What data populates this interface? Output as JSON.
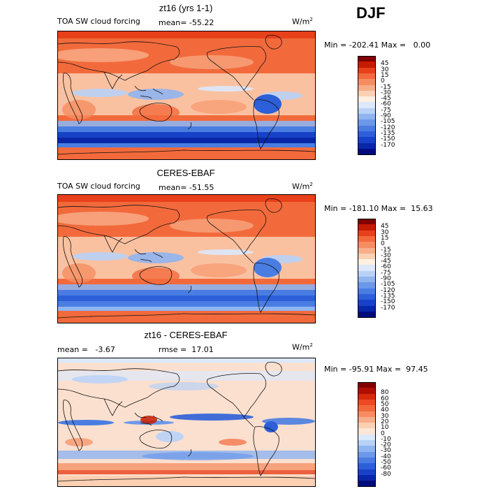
{
  "season": "DJF",
  "panels": [
    {
      "title": "zt16 (yrs 1-1)",
      "left_text": "TOA SW cloud forcing",
      "mid_text": "mean= -55.22",
      "unit": "W/m",
      "unit_exp": "2",
      "range_text": "Min = -202.41 Max =   0.00",
      "colorbar": {
        "colors": [
          "#800000",
          "#c51b00",
          "#e8401a",
          "#f26a3c",
          "#f58d60",
          "#f8ae88",
          "#fbd0b3",
          "#fff0e0",
          "#dce8fb",
          "#b8d1f7",
          "#8fb4f0",
          "#6b98ea",
          "#4a7de2",
          "#2c5fd8",
          "#1742c8",
          "#0827a8",
          "#000c7e"
        ],
        "labels": [
          "45",
          "30",
          "15",
          "0",
          "-15",
          "-30",
          "-45",
          "-60",
          "-75",
          "-90",
          "-105",
          "-120",
          "-135",
          "-150",
          "-170"
        ]
      },
      "map_style": "bias_negative"
    },
    {
      "title": "CERES-EBAF",
      "left_text": "TOA SW cloud forcing",
      "mid_text": "mean= -51.55",
      "unit": "W/m",
      "unit_exp": "2",
      "range_text": "Min = -181.10 Max =  15.63",
      "colorbar": {
        "colors": [
          "#800000",
          "#c51b00",
          "#e8401a",
          "#f26a3c",
          "#f58d60",
          "#f8ae88",
          "#fbd0b3",
          "#fff0e0",
          "#dce8fb",
          "#b8d1f7",
          "#8fb4f0",
          "#6b98ea",
          "#4a7de2",
          "#2c5fd8",
          "#1742c8",
          "#0827a8",
          "#000c7e"
        ],
        "labels": [
          "45",
          "30",
          "15",
          "0",
          "-15",
          "-30",
          "-45",
          "-60",
          "-75",
          "-90",
          "-105",
          "-120",
          "-135",
          "-150",
          "-170"
        ]
      },
      "map_style": "obs"
    },
    {
      "title": "zt16 - CERES-EBAF",
      "left_text": "mean =   -3.67",
      "mid_text": "rmse =  17.01",
      "unit": "W/m",
      "unit_exp": "2",
      "range_text": "Min = -95.91 Max =  97.45",
      "colorbar": {
        "colors": [
          "#800000",
          "#b00f00",
          "#d62a0a",
          "#ec4a22",
          "#f26a3c",
          "#f58d60",
          "#f8ae88",
          "#fbd0b3",
          "#fde6d6",
          "#dce8fb",
          "#b8d1f7",
          "#8fb4f0",
          "#6b98ea",
          "#4a7de2",
          "#2c5fd8",
          "#1742c8",
          "#0827a8",
          "#000c7e"
        ],
        "labels": [
          "80",
          "60",
          "50",
          "40",
          "30",
          "20",
          "10",
          "0",
          "-10",
          "-20",
          "-30",
          "-40",
          "-50",
          "-60",
          "-80"
        ]
      },
      "map_style": "diff"
    }
  ]
}
